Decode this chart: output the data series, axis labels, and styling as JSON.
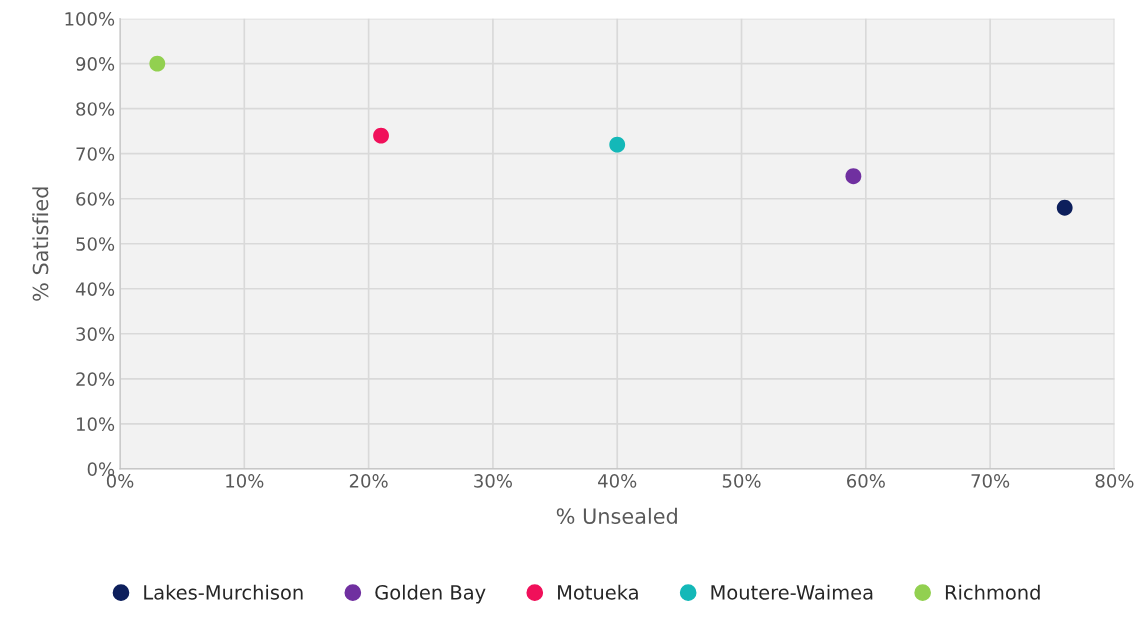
{
  "chart_data": {
    "type": "scatter",
    "xlabel": "% Unsealed",
    "ylabel": "% Satisfied",
    "xlim": [
      0,
      80
    ],
    "ylim": [
      0,
      100
    ],
    "xticks": [
      {
        "value": 0,
        "label": "0%"
      },
      {
        "value": 10,
        "label": "10%"
      },
      {
        "value": 20,
        "label": "20%"
      },
      {
        "value": 30,
        "label": "30%"
      },
      {
        "value": 40,
        "label": "40%"
      },
      {
        "value": 50,
        "label": "50%"
      },
      {
        "value": 60,
        "label": "60%"
      },
      {
        "value": 70,
        "label": "70%"
      },
      {
        "value": 80,
        "label": "80%"
      }
    ],
    "yticks": [
      {
        "value": 0,
        "label": "0%"
      },
      {
        "value": 10,
        "label": "10%"
      },
      {
        "value": 20,
        "label": "20%"
      },
      {
        "value": 30,
        "label": "30%"
      },
      {
        "value": 40,
        "label": "40%"
      },
      {
        "value": 50,
        "label": "50%"
      },
      {
        "value": 60,
        "label": "60%"
      },
      {
        "value": 70,
        "label": "70%"
      },
      {
        "value": 80,
        "label": "80%"
      },
      {
        "value": 90,
        "label": "90%"
      },
      {
        "value": 100,
        "label": "100%"
      }
    ],
    "grid": true,
    "legend": "bottom",
    "marker": "circle",
    "series": [
      {
        "name": "Lakes-Murchison",
        "color": "#0d1f5c",
        "x": [
          76
        ],
        "values": [
          58
        ]
      },
      {
        "name": "Golden Bay",
        "color": "#7030a0",
        "x": [
          59
        ],
        "values": [
          65
        ]
      },
      {
        "name": "Motueka",
        "color": "#f0105a",
        "x": [
          21
        ],
        "values": [
          74
        ]
      },
      {
        "name": "Moutere-Waimea",
        "color": "#14b8b8",
        "x": [
          40
        ],
        "values": [
          72
        ]
      },
      {
        "name": "Richmond",
        "color": "#92d050",
        "x": [
          3
        ],
        "values": [
          90
        ]
      }
    ]
  }
}
